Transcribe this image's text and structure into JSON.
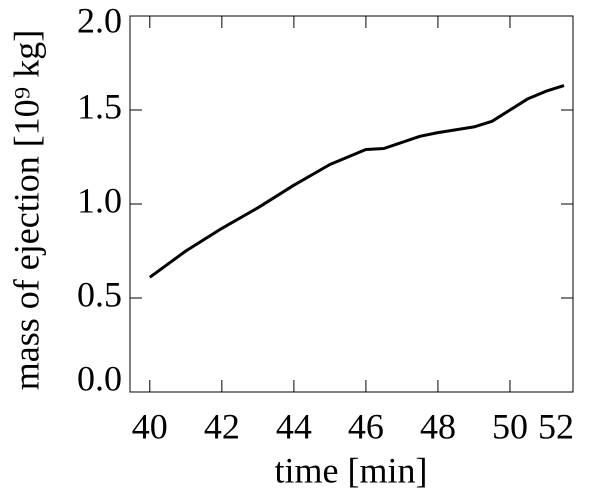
{
  "chart_data": {
    "type": "line",
    "x_label": "time [min]",
    "y_label": "mass of ejection [10⁹ kg]",
    "x": [
      40,
      41,
      42,
      43,
      44,
      45,
      46,
      46.5,
      47.5,
      48,
      49,
      49.5,
      50,
      50.5,
      51,
      51.5
    ],
    "values": [
      0.61,
      0.75,
      0.87,
      0.98,
      1.1,
      1.21,
      1.29,
      1.295,
      1.36,
      1.38,
      1.41,
      1.44,
      1.5,
      1.56,
      1.6,
      1.63
    ],
    "color": "#000000",
    "xlim": [
      39.45,
      51.75
    ],
    "xticks": [
      40,
      42,
      44,
      46,
      48,
      50,
      52
    ],
    "ylim": [
      0,
      2
    ],
    "yticks": [
      {
        "value": 0,
        "label": "0.0"
      },
      {
        "value": 0.5,
        "label": "0.5"
      },
      {
        "value": 1,
        "label": "1.0"
      },
      {
        "value": 1.5,
        "label": "1.5"
      },
      {
        "value": 2,
        "label": "2.0"
      }
    ]
  }
}
